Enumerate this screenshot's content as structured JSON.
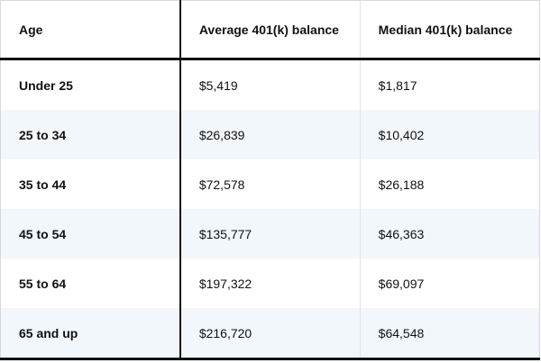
{
  "table": {
    "header": [
      "Age",
      "Average 401(k) balance",
      "Median 401(k) balance"
    ],
    "rows": [
      [
        "Under 25",
        "$5,419",
        "$1,817"
      ],
      [
        "25 to 34",
        "$26,839",
        "$10,402"
      ],
      [
        "35 to 44",
        "$72,578",
        "$26,188"
      ],
      [
        "45 to 54",
        "$135,777",
        "$46,363"
      ],
      [
        "55 to 64",
        "$197,322",
        "$69,097"
      ],
      [
        "65 and up",
        "$216,720",
        "$64,548"
      ]
    ]
  }
}
